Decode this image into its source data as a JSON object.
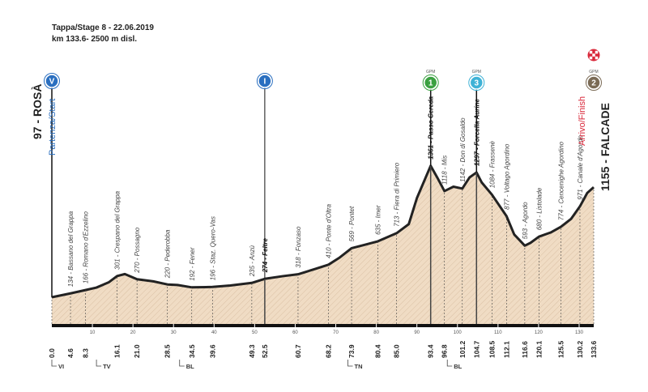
{
  "chart_data": {
    "type": "area",
    "title": "Tappa/Stage 8 - 22.06.2019",
    "subtitle": "km 133.6- 2500 m disl.",
    "start": {
      "name": "97 - ROSÀ",
      "label": "Partenza/Start"
    },
    "finish": {
      "name": "1155 - FALCADE",
      "label": "Arrivo/Finish"
    },
    "color": "#f0dcc4",
    "line_color": "#222222",
    "x": [
      0,
      4.6,
      8.3,
      11,
      14,
      16.1,
      18,
      21,
      25,
      28.5,
      31,
      34.5,
      39.6,
      44,
      49.3,
      52.5,
      57,
      60.7,
      65,
      68.2,
      71,
      73.9,
      77,
      80.4,
      85,
      88,
      90,
      93.4,
      95,
      96.8,
      99,
      101.2,
      103,
      104.7,
      106,
      108.5,
      112.1,
      114,
      116.6,
      118,
      120.1,
      123,
      125.5,
      128,
      130.2,
      132,
      133.6
    ],
    "values": [
      97,
      134,
      166,
      190,
      240,
      301,
      320,
      270,
      250,
      220,
      215,
      192,
      196,
      210,
      235,
      274,
      300,
      318,
      370,
      410,
      480,
      569,
      600,
      635,
      713,
      800,
      1050,
      1361,
      1250,
      1118,
      1160,
      1142,
      1250,
      1297,
      1200,
      1084,
      877,
      700,
      593,
      620,
      680,
      720,
      774,
      850,
      971,
      1100,
      1155
    ],
    "xlim": [
      0,
      133.6
    ],
    "ylim": [
      -160,
      2644
    ],
    "xticks": [
      10,
      20,
      30,
      40,
      50,
      60,
      70,
      80,
      90,
      100,
      110,
      120,
      130
    ],
    "waypoints": [
      {
        "km": {
          "value": 0,
          "label": "0.0"
        }
      },
      {
        "km": 4.6,
        "label": "134 - Bassano del Grappa"
      },
      {
        "km": 8.3,
        "label": "166 - Romano d'Ezzelino"
      },
      {
        "km": 16.1,
        "label": "301 - Crespano del Grappa"
      },
      {
        "km": {
          "value": 21,
          "label": "21.0"
        },
        "label": "270 - Possagno"
      },
      {
        "km": 28.5,
        "label": "220 - Pederobba"
      },
      {
        "km": 34.5,
        "label": "192 - Fener"
      },
      {
        "km": 39.6,
        "label": "196 - Staz. Quero-Vas"
      },
      {
        "km": 49.3,
        "label": "235 - Anzù"
      },
      {
        "km": 52.5,
        "label": "274 - Feltre",
        "bold": true
      },
      {
        "km": 60.7,
        "label": "318 - Fonzaso"
      },
      {
        "km": 68.2,
        "label": "410 - Ponte d'Oltra"
      },
      {
        "km": 73.9,
        "label": "569 - Pontet"
      },
      {
        "km": 80.4,
        "label": "635 - Imer"
      },
      {
        "km": {
          "value": 85,
          "label": "85.0"
        },
        "label": "713 - Fiera di Primiero"
      },
      {
        "km": 93.4,
        "label": "1361 - Passo Cereda",
        "bold": true
      },
      {
        "km": 96.8,
        "label": "1118 - Mis"
      },
      {
        "km": 101.2,
        "label": "1142 - Don di Gosaldo"
      },
      {
        "km": 104.7,
        "label": "1297 - Forcella Aurine",
        "bold": true
      },
      {
        "km": 108.5,
        "label": "1084 - Frassenè"
      },
      {
        "km": 112.1,
        "label": "877 - Voltago Agordino"
      },
      {
        "km": 116.6,
        "label": "593 - Agordo"
      },
      {
        "km": 120.1,
        "label": "680 - Listolade"
      },
      {
        "km": 125.5,
        "label": "774 - Cencenighe Agordino"
      },
      {
        "km": 130.2,
        "label": "971 - Canale d'Agordo"
      },
      {
        "km": 133.6
      }
    ],
    "provinces": [
      {
        "km": 0,
        "label": "VI"
      },
      {
        "km": 11,
        "label": "TV"
      },
      {
        "km": 31.5,
        "label": "BL"
      },
      {
        "km": 73,
        "label": "TN"
      },
      {
        "km": 97.5,
        "label": "BL"
      }
    ],
    "markers": [
      {
        "km": 0,
        "icon": "V",
        "color": "#2a6fc0"
      },
      {
        "km": 52.5,
        "icon": "I",
        "color": "#2a6fc0"
      },
      {
        "km": 93.4,
        "tag": "GPM",
        "icon": "1",
        "color": "#3aa040"
      },
      {
        "km": 104.7,
        "tag": "GPM",
        "icon": "3",
        "color": "#3fb2d6"
      },
      {
        "km": 133.6,
        "tag": "GPM",
        "icon": "2",
        "color": "#7a6a55"
      }
    ]
  }
}
